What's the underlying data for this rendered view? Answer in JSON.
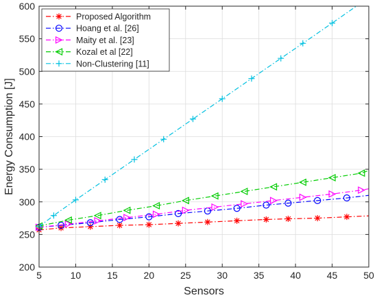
{
  "chart_data": {
    "type": "line",
    "title": "",
    "xlabel": "Sensors",
    "ylabel": "Energy Consumption [J]",
    "xlim": [
      5,
      50
    ],
    "ylim": [
      200,
      600
    ],
    "xticks": [
      5,
      10,
      15,
      20,
      25,
      30,
      35,
      40,
      45,
      50
    ],
    "yticks": [
      200,
      250,
      300,
      350,
      400,
      450,
      500,
      550,
      600
    ],
    "grid": true,
    "legend_position": "top-left",
    "series": [
      {
        "name": "Proposed Algorithm",
        "color": "#ff0000",
        "marker": "asterisk",
        "x": [
          5,
          8,
          12,
          16,
          20,
          24,
          28,
          32,
          36,
          39,
          43,
          47
        ],
        "y": [
          257,
          260,
          262,
          264,
          265,
          267,
          269,
          271,
          273,
          274,
          275,
          277
        ],
        "line_end": [
          50,
          278.5
        ]
      },
      {
        "name": "Hoang et al. [26]",
        "color": "#0000ff",
        "marker": "circle",
        "x": [
          5,
          8,
          12,
          16,
          20,
          24,
          28,
          32,
          36,
          39,
          43,
          47
        ],
        "y": [
          261,
          264,
          268,
          273,
          277,
          282,
          286,
          290,
          295,
          298,
          302,
          306
        ],
        "line_end": [
          50,
          310
        ]
      },
      {
        "name": "Maity et al. [23]",
        "color": "#ff00ff",
        "marker": "triangle-right",
        "x": [
          5,
          9,
          13,
          17,
          21,
          25,
          29,
          33,
          37,
          41,
          45,
          49
        ],
        "y": [
          261,
          266,
          271,
          276,
          281,
          287,
          292,
          297,
          302,
          307,
          312,
          318
        ],
        "line_end": [
          50,
          320
        ]
      },
      {
        "name": "Kozal et al [22]",
        "color": "#00cc00",
        "marker": "triangle-left",
        "x": [
          5,
          9,
          13,
          17,
          21,
          25,
          29,
          33,
          37,
          41,
          45,
          49
        ],
        "y": [
          263,
          272,
          279,
          287,
          294,
          302,
          309,
          316,
          323,
          330,
          337,
          344
        ],
        "line_end": [
          50,
          348
        ]
      },
      {
        "name": "Non-Clustering [11]",
        "color": "#00c0e0",
        "marker": "plus",
        "x": [
          5,
          7,
          10,
          14,
          18,
          22,
          26,
          30,
          34,
          38,
          41,
          45
        ],
        "y": [
          262,
          279,
          303,
          334,
          365,
          396,
          427,
          458,
          489,
          520,
          543,
          574
        ],
        "line_end": [
          48.3,
          600
        ]
      }
    ]
  }
}
